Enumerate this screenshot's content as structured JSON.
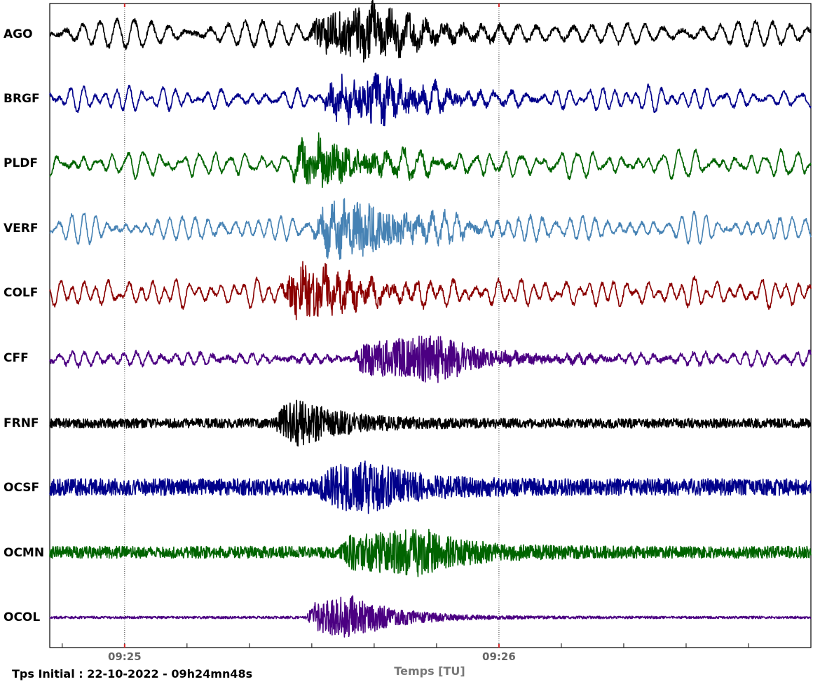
{
  "chart_data": {
    "type": "line",
    "subtype": "seismogram-stack",
    "xlabel": "Temps [TU]",
    "caption": "Tps Initial : 22-10-2022 - 09h24mn48s",
    "start_time": "09:24:48",
    "x_range_seconds": [
      0,
      122
    ],
    "major_ticks": [
      {
        "label": "09:25",
        "t": 12
      },
      {
        "label": "09:26",
        "t": 72
      }
    ],
    "minor_tick_interval_seconds": 10,
    "grid": "vertical dotted lines at major ticks",
    "series": [
      {
        "name": "AGO",
        "color": "#000000",
        "onset_t": 41.5,
        "peak_t": 52.0,
        "amplitude": 1.0,
        "noise": 0.1,
        "long_period": 0.5
      },
      {
        "name": "BRGF",
        "color": "#00008b",
        "onset_t": 43.5,
        "peak_t": 53.0,
        "amplitude": 0.8,
        "noise": 0.08,
        "long_period": 0.3
      },
      {
        "name": "PLDF",
        "color": "#006400",
        "onset_t": 38.5,
        "peak_t": 44.0,
        "amplitude": 0.85,
        "noise": 0.08,
        "long_period": 0.45
      },
      {
        "name": "VERF",
        "color": "#4682b4",
        "onset_t": 42.0,
        "peak_t": 51.0,
        "amplitude": 1.0,
        "noise": 0.08,
        "long_period": 0.45
      },
      {
        "name": "COLF",
        "color": "#8b0000",
        "onset_t": 37.0,
        "peak_t": 42.0,
        "amplitude": 0.95,
        "noise": 0.08,
        "long_period": 0.45
      },
      {
        "name": "CFF",
        "color": "#4b0082",
        "onset_t": 48.5,
        "peak_t": 62.0,
        "amplitude": 0.9,
        "noise": 0.1,
        "long_period": 0.15
      },
      {
        "name": "FRNF",
        "color": "#000000",
        "onset_t": 36.0,
        "peak_t": 40.0,
        "amplitude": 0.85,
        "noise": 0.2,
        "long_period": 0.0
      },
      {
        "name": "OCSF",
        "color": "#00008b",
        "onset_t": 43.0,
        "peak_t": 51.0,
        "amplitude": 0.8,
        "noise": 0.35,
        "long_period": 0.0
      },
      {
        "name": "OCMN",
        "color": "#006400",
        "onset_t": 46.5,
        "peak_t": 60.0,
        "amplitude": 0.8,
        "noise": 0.25,
        "long_period": 0.0
      },
      {
        "name": "OCOL",
        "color": "#4b0082",
        "onset_t": 41.0,
        "peak_t": 48.5,
        "amplitude": 0.9,
        "noise": 0.05,
        "long_period": 0.0
      }
    ]
  }
}
